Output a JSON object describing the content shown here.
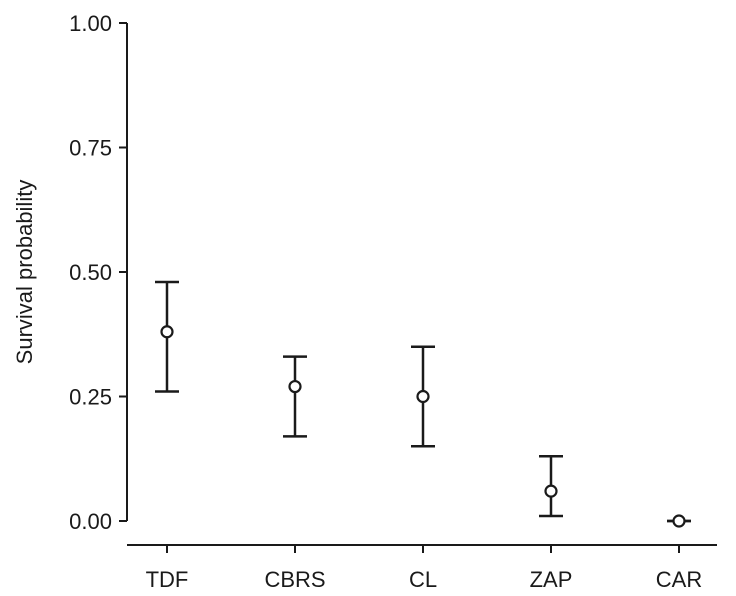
{
  "chart_data": {
    "type": "scatter",
    "title": "",
    "xlabel": "",
    "ylabel": "Survival probability",
    "ylim": [
      0,
      1
    ],
    "y_ticks": [
      0,
      0.25,
      0.5,
      0.75,
      1
    ],
    "y_tick_labels": [
      "0.00",
      "0.25",
      "0.50",
      "0.75",
      "1.00"
    ],
    "categories": [
      "TDF",
      "CBRS",
      "CL",
      "ZAP",
      "CAR"
    ],
    "points": [
      {
        "category": "TDF",
        "estimate": 0.38,
        "lower": 0.26,
        "upper": 0.48
      },
      {
        "category": "CBRS",
        "estimate": 0.27,
        "lower": 0.17,
        "upper": 0.33
      },
      {
        "category": "CL",
        "estimate": 0.25,
        "lower": 0.15,
        "upper": 0.35
      },
      {
        "category": "ZAP",
        "estimate": 0.06,
        "lower": 0.01,
        "upper": 0.13
      },
      {
        "category": "CAR",
        "estimate": 0.0,
        "lower": 0.0,
        "upper": 0.0
      }
    ],
    "grid": false,
    "legend": "none",
    "colors": {
      "axis": "#1a1a1a",
      "marker_fill": "#ffffff",
      "marker_stroke": "#1a1a1a"
    }
  }
}
